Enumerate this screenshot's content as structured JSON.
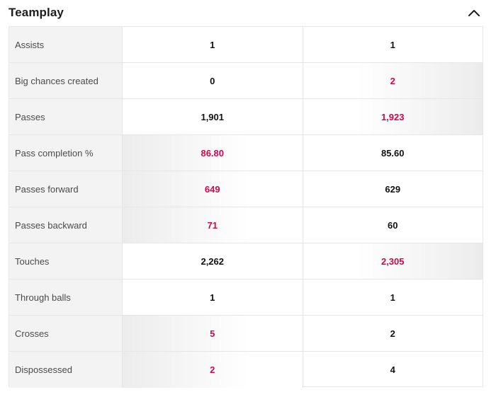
{
  "section": {
    "title": "Teamplay",
    "toggle_icon": "chevron-up-icon"
  },
  "colors": {
    "leader_value": "#d1064f",
    "default_value": "#111111",
    "label_background": "#f3f3f3"
  },
  "rows": [
    {
      "label": "Assists",
      "home": "1",
      "away": "1",
      "leader": "none"
    },
    {
      "label": "Big chances created",
      "home": "0",
      "away": "2",
      "leader": "away"
    },
    {
      "label": "Passes",
      "home": "1,901",
      "away": "1,923",
      "leader": "away"
    },
    {
      "label": "Pass completion %",
      "home": "86.80",
      "away": "85.60",
      "leader": "home"
    },
    {
      "label": "Passes forward",
      "home": "649",
      "away": "629",
      "leader": "home"
    },
    {
      "label": "Passes backward",
      "home": "71",
      "away": "60",
      "leader": "home"
    },
    {
      "label": "Touches",
      "home": "2,262",
      "away": "2,305",
      "leader": "away"
    },
    {
      "label": "Through balls",
      "home": "1",
      "away": "1",
      "leader": "none"
    },
    {
      "label": "Crosses",
      "home": "5",
      "away": "2",
      "leader": "home"
    },
    {
      "label": "Dispossessed",
      "home": "2",
      "away": "4",
      "leader": "home"
    }
  ]
}
